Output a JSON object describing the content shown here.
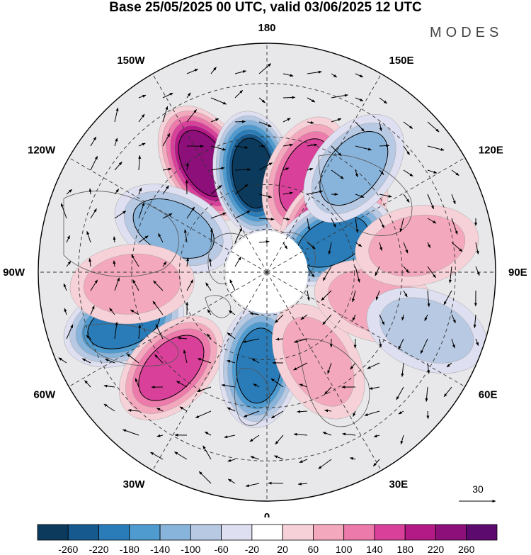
{
  "header": {
    "title": "Base 25/05/2025 00 UTC, valid 03/06/2025 12 UTC",
    "brand": "MODES"
  },
  "map": {
    "projection": "north polar stereographic",
    "meridian_labels": [
      {
        "text": "180",
        "lon": 180
      },
      {
        "text": "150E",
        "lon": 150
      },
      {
        "text": "120E",
        "lon": 120
      },
      {
        "text": "90E",
        "lon": 90
      },
      {
        "text": "60E",
        "lon": 60
      },
      {
        "text": "30E",
        "lon": 30
      },
      {
        "text": "0",
        "lon": 0
      },
      {
        "text": "30W",
        "lon": -30
      },
      {
        "text": "60W",
        "lon": -60
      },
      {
        "text": "90W",
        "lon": -90
      },
      {
        "text": "120W",
        "lon": -120
      },
      {
        "text": "150W",
        "lon": -150
      }
    ],
    "reference_vector_label": "30",
    "anomaly_centers": [
      {
        "value": 220,
        "lon": -150,
        "lat": 48
      },
      {
        "value": -260,
        "lon": -172,
        "lat": 56
      },
      {
        "value": 140,
        "lon": 158,
        "lat": 55
      },
      {
        "value": 180,
        "lon": 130,
        "lat": 60
      },
      {
        "value": -180,
        "lon": 115,
        "lat": 65
      },
      {
        "value": -100,
        "lon": 140,
        "lat": 45
      },
      {
        "value": -180,
        "lon": -70,
        "lat": 40
      },
      {
        "value": 140,
        "lon": -45,
        "lat": 45
      },
      {
        "value": -180,
        "lon": -5,
        "lat": 58
      },
      {
        "value": 60,
        "lon": 30,
        "lat": 55
      },
      {
        "value": -100,
        "lon": -115,
        "lat": 55
      },
      {
        "value": 60,
        "lon": -85,
        "lat": 45
      },
      {
        "value": 60,
        "lon": 75,
        "lat": 52
      },
      {
        "value": 60,
        "lon": 100,
        "lat": 40
      },
      {
        "value": -60,
        "lon": 70,
        "lat": 35
      }
    ]
  },
  "colorbar": {
    "tick_labels": [
      "-260",
      "-220",
      "-180",
      "-140",
      "-100",
      "-60",
      "-20",
      "20",
      "60",
      "100",
      "140",
      "180",
      "220",
      "260"
    ],
    "colors": [
      "#0b3a5c",
      "#15598f",
      "#2a7cb8",
      "#4f9bcf",
      "#88b4dc",
      "#b8c9e3",
      "#dedff0",
      "#ffffff",
      "#f6d2d8",
      "#f3a8bd",
      "#ec7aaa",
      "#d9409a",
      "#b41a86",
      "#8c0f7a",
      "#5c0a6e"
    ]
  }
}
